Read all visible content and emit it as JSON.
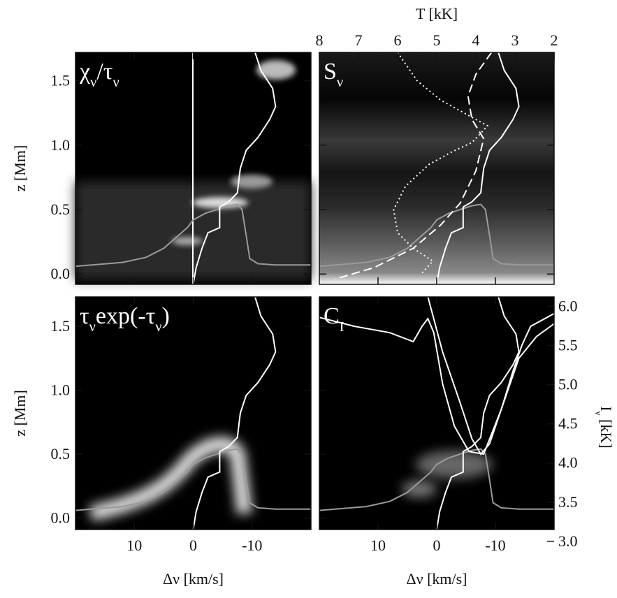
{
  "chart_data": [
    {
      "type": "line",
      "label": [
        {
          "text": "χ"
        },
        {
          "sub": "ν"
        },
        {
          "text": "/τ"
        },
        {
          "sub": "ν"
        }
      ],
      "ylabel": [
        {
          "text": "z [Mm]"
        }
      ],
      "xlim": [
        20,
        -20
      ],
      "ylim": [
        -0.08,
        1.72
      ],
      "xticks": [
        10,
        0,
        -10
      ],
      "yticks": [
        {
          "value": 0,
          "label": "0.0"
        },
        0.5,
        {
          "value": 1,
          "label": "1.0"
        },
        1.5
      ],
      "series": [
        {
          "color": "#9a9a9a",
          "style": "solid",
          "x": [
            20,
            12,
            8,
            5,
            3,
            1,
            0,
            -2,
            -4,
            -6,
            -7.5,
            -8.3,
            -9,
            -9.6,
            -11,
            -14,
            -20
          ],
          "values": [
            0.06,
            0.09,
            0.13,
            0.2,
            0.28,
            0.36,
            0.42,
            0.47,
            0.5,
            0.53,
            0.54,
            0.5,
            0.3,
            0.12,
            0.08,
            0.07,
            0.07
          ]
        },
        {
          "color": "#ffffff",
          "style": "solid",
          "x": [
            0,
            -0.5,
            -1.5,
            -2.5,
            -4.5,
            -4.5,
            -6,
            -7.5,
            -8,
            -9,
            -11,
            -13,
            -14,
            -13.5,
            -11.5,
            -10.5
          ],
          "values": [
            -0.08,
            0.05,
            0.2,
            0.32,
            0.36,
            0.52,
            0.56,
            0.63,
            0.82,
            0.96,
            1.06,
            1.2,
            1.3,
            1.44,
            1.58,
            1.72
          ]
        }
      ]
    },
    {
      "type": "line",
      "label": [
        {
          "text": "S"
        },
        {
          "sub": "ν"
        }
      ],
      "x2label": [
        {
          "text": "T [kK]"
        }
      ],
      "xlim": [
        20,
        -20
      ],
      "ylim": [
        -0.08,
        1.72
      ],
      "x2lim": [
        8,
        2
      ],
      "xticks": [
        10,
        0,
        -10
      ],
      "x2ticks": [
        8,
        7,
        6,
        5,
        4,
        3,
        2
      ],
      "yticks": [
        {
          "value": 0,
          "label": "0.0"
        },
        0.5,
        {
          "value": 1,
          "label": "1.0"
        },
        1.5
      ],
      "series": [
        {
          "color": "#9a9a9a",
          "style": "solid",
          "x": [
            20,
            12,
            8,
            5,
            3,
            1,
            0,
            -2,
            -4,
            -6,
            -7.5,
            -8.3,
            -9,
            -9.6,
            -11,
            -14,
            -20
          ],
          "values": [
            0.06,
            0.09,
            0.13,
            0.2,
            0.28,
            0.36,
            0.42,
            0.47,
            0.5,
            0.53,
            0.54,
            0.5,
            0.3,
            0.12,
            0.08,
            0.07,
            0.07
          ]
        },
        {
          "color": "#ffffff",
          "style": "solid",
          "x": [
            0,
            -0.5,
            -1.5,
            -2.5,
            -4.5,
            -4.5,
            -6,
            -7.5,
            -8,
            -9,
            -11,
            -13,
            -14,
            -13.5,
            -11.5,
            -10.5
          ],
          "values": [
            -0.08,
            0.05,
            0.2,
            0.32,
            0.36,
            0.52,
            0.56,
            0.63,
            0.82,
            0.96,
            1.06,
            1.2,
            1.3,
            1.44,
            1.58,
            1.72
          ]
        },
        {
          "color": "#ffffff",
          "style": "dotted",
          "axis": "x2",
          "x": [
            6.0,
            5.5,
            4.9,
            4.3,
            3.7,
            4.1,
            4.6,
            5.2,
            5.8,
            6.1,
            6.0,
            5.6,
            5.1,
            5.4
          ],
          "values": [
            1.72,
            1.5,
            1.35,
            1.25,
            1.15,
            1.02,
            0.95,
            0.85,
            0.68,
            0.5,
            0.32,
            0.2,
            0.1,
            0.0
          ]
        },
        {
          "color": "#ffffff",
          "style": "dashed",
          "axis": "x2",
          "x": [
            3.6,
            4.0,
            4.2,
            4.1,
            3.8,
            4.0,
            4.4,
            4.9,
            5.6,
            6.6,
            7.6
          ],
          "values": [
            1.72,
            1.55,
            1.38,
            1.2,
            1.05,
            0.8,
            0.55,
            0.38,
            0.2,
            0.05,
            -0.04
          ]
        }
      ]
    },
    {
      "type": "line",
      "label": [
        {
          "text": "τ"
        },
        {
          "sub": "ν"
        },
        {
          "text": "exp(-τ"
        },
        {
          "sub": "ν"
        },
        {
          "text": ")"
        }
      ],
      "ylabel": [
        {
          "text": "z [Mm]"
        }
      ],
      "xlabel": [
        {
          "text": "Δν [km/s]"
        }
      ],
      "xlim": [
        20,
        -20
      ],
      "ylim": [
        -0.09,
        1.73
      ],
      "xticks": [
        10,
        0,
        -10
      ],
      "yticks": [
        {
          "value": 0,
          "label": "0.0"
        },
        0.5,
        {
          "value": 1,
          "label": "1.0"
        },
        1.5
      ],
      "series": [
        {
          "color": "#9a9a9a",
          "style": "solid",
          "x": [
            20,
            12,
            8,
            5,
            3,
            1,
            0,
            -2,
            -4,
            -6,
            -7.5,
            -8.3,
            -9,
            -9.6,
            -11,
            -14,
            -20
          ],
          "values": [
            0.06,
            0.09,
            0.13,
            0.2,
            0.28,
            0.36,
            0.42,
            0.47,
            0.5,
            0.53,
            0.54,
            0.5,
            0.3,
            0.12,
            0.08,
            0.07,
            0.07
          ]
        },
        {
          "color": "#ffffff",
          "style": "solid",
          "x": [
            0,
            -0.5,
            -1.5,
            -2.5,
            -4.5,
            -4.5,
            -6,
            -7.5,
            -8,
            -9,
            -11,
            -13,
            -14,
            -13.5,
            -11.5,
            -10.5
          ],
          "values": [
            -0.09,
            0.05,
            0.2,
            0.32,
            0.36,
            0.52,
            0.56,
            0.63,
            0.82,
            0.96,
            1.06,
            1.2,
            1.3,
            1.44,
            1.58,
            1.73
          ]
        }
      ]
    },
    {
      "type": "line",
      "label": [
        {
          "text": "C"
        },
        {
          "sub": "I"
        }
      ],
      "xlabel": [
        {
          "text": "Δν [km/s]"
        }
      ],
      "y2label": [
        {
          "text": "I"
        },
        {
          "sub": "ν"
        },
        {
          "text": " [kK]"
        }
      ],
      "xlim": [
        20,
        -20
      ],
      "ylim": [
        -0.09,
        1.73
      ],
      "y2lim": [
        3.15,
        6.12
      ],
      "xticks": [
        10,
        0,
        -10
      ],
      "yticks": [
        {
          "value": 0,
          "label": "0.0"
        },
        0.5,
        {
          "value": 1,
          "label": "1.0"
        },
        1.5
      ],
      "y2ticks": [
        {
          "value": 3,
          "label": "3.0"
        },
        3.5,
        {
          "value": 4,
          "label": "4.0"
        },
        4.5,
        {
          "value": 5,
          "label": "5.0"
        },
        5.5,
        {
          "value": 6,
          "label": "6.0"
        }
      ],
      "series": [
        {
          "color": "#9a9a9a",
          "style": "solid",
          "x": [
            20,
            12,
            8,
            5,
            3,
            1,
            0,
            -2,
            -4,
            -6,
            -7.5,
            -8.3,
            -9,
            -9.6,
            -11,
            -14,
            -20
          ],
          "values": [
            0.06,
            0.09,
            0.13,
            0.2,
            0.28,
            0.36,
            0.42,
            0.47,
            0.5,
            0.53,
            0.54,
            0.5,
            0.3,
            0.12,
            0.08,
            0.07,
            0.07
          ]
        },
        {
          "color": "#ffffff",
          "style": "solid",
          "x": [
            0,
            -0.5,
            -1.5,
            -2.5,
            -4.5,
            -4.5,
            -6,
            -7.5,
            -8,
            -9,
            -11,
            -13,
            -14,
            -13.5,
            -11.5,
            -10.5
          ],
          "values": [
            -0.09,
            0.05,
            0.2,
            0.32,
            0.36,
            0.52,
            0.56,
            0.63,
            0.82,
            0.96,
            1.06,
            1.2,
            1.3,
            1.44,
            1.58,
            1.73
          ]
        },
        {
          "color": "#ffffff",
          "style": "solid",
          "x": [
            20,
            14,
            8,
            4,
            2.5,
            1.5,
            0.5,
            -1,
            -3,
            -5.5,
            -8,
            -11,
            -14,
            -17,
            -20
          ],
          "values": [
            1.57,
            1.5,
            1.45,
            1.38,
            1.5,
            1.56,
            1.45,
            1.05,
            0.72,
            0.52,
            0.5,
            0.85,
            1.25,
            1.42,
            1.52
          ]
        },
        {
          "color": "#ffffff",
          "style": "solid",
          "x": [
            1.5,
            -1,
            -4,
            -6,
            -7.5,
            -9,
            -11,
            -13,
            -14.5,
            -16,
            -20
          ],
          "values": [
            1.73,
            1.3,
            0.9,
            0.62,
            0.5,
            0.58,
            0.85,
            1.15,
            1.35,
            1.5,
            1.6
          ]
        }
      ]
    }
  ]
}
